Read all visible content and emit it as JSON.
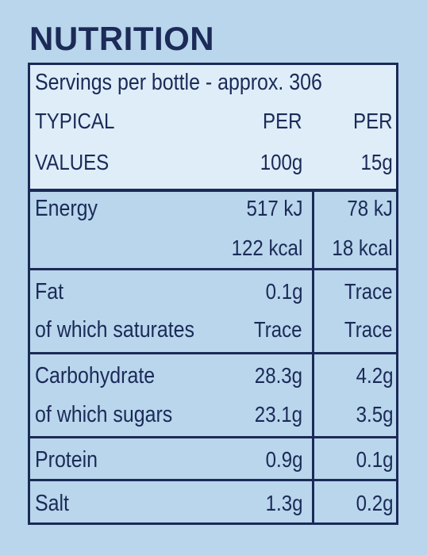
{
  "title": "NUTRITION",
  "header": {
    "servings": "Servings per bottle - approx. 306",
    "typical": "TYPICAL",
    "values": "VALUES",
    "col1_top": "PER",
    "col1_bottom": "100g",
    "col2_top": "PER",
    "col2_bottom": "15g"
  },
  "rows": [
    {
      "label": "Energy",
      "sub_label": "",
      "col1": "517 kJ",
      "col1_sub": "122 kcal",
      "col2": "78 kJ",
      "col2_sub": "18 kcal"
    },
    {
      "label": "Fat",
      "sub_label": "of which saturates",
      "col1": "0.1g",
      "col1_sub": "Trace",
      "col2": "Trace",
      "col2_sub": "Trace"
    },
    {
      "label": "Carbohydrate",
      "sub_label": "of which sugars",
      "col1": "28.3g",
      "col1_sub": "23.1g",
      "col2": "4.2g",
      "col2_sub": "3.5g"
    },
    {
      "label": "Protein",
      "col1": "0.9g",
      "col2": "0.1g"
    },
    {
      "label": "Salt",
      "col1": "1.3g",
      "col2": "0.2g"
    }
  ],
  "colors": {
    "background": "#b9d6ec",
    "header_fill": "#deedf8",
    "text": "#1b2a57"
  }
}
